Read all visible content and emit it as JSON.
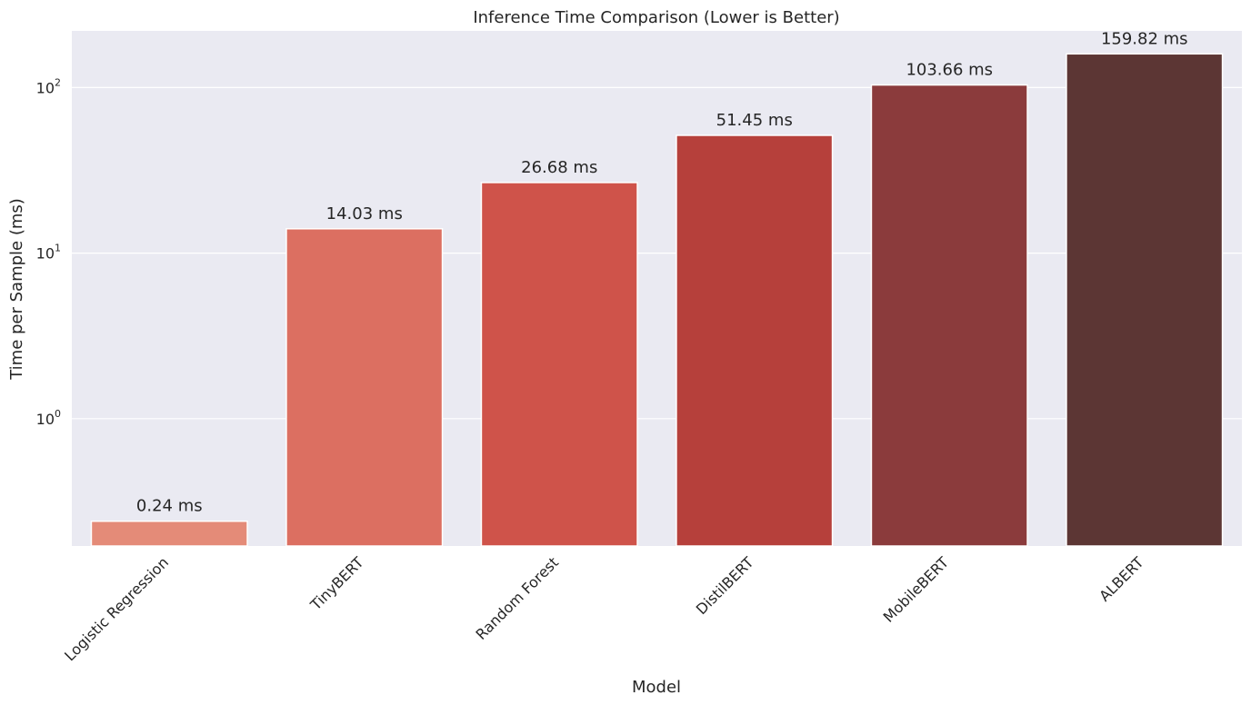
{
  "chart_data": {
    "type": "bar",
    "title": "Inference Time Comparison (Lower is Better)",
    "xlabel": "Model",
    "ylabel": "Time per Sample (ms)",
    "yscale": "log",
    "ylim": [
      0.17,
      220
    ],
    "y_ticks": [
      1,
      10,
      100
    ],
    "y_tick_labels": [
      {
        "base": "10",
        "exp": "0"
      },
      {
        "base": "10",
        "exp": "1"
      },
      {
        "base": "10",
        "exp": "2"
      }
    ],
    "grid": true,
    "categories": [
      "Logistic Regression",
      "TinyBERT",
      "Random Forest",
      "DistilBERT",
      "MobileBERT",
      "ALBERT"
    ],
    "values": [
      0.24,
      14.03,
      26.68,
      51.45,
      103.66,
      159.82
    ],
    "bar_labels": [
      "0.24 ms",
      "14.03 ms",
      "26.68 ms",
      "51.45 ms",
      "103.66 ms",
      "159.82 ms"
    ],
    "colors": [
      "#e48b78",
      "#dc6f61",
      "#cf534a",
      "#b6403b",
      "#8b3b3c",
      "#5c3634"
    ],
    "background_color": "#eaeaf2",
    "grid_color": "#ffffff"
  }
}
